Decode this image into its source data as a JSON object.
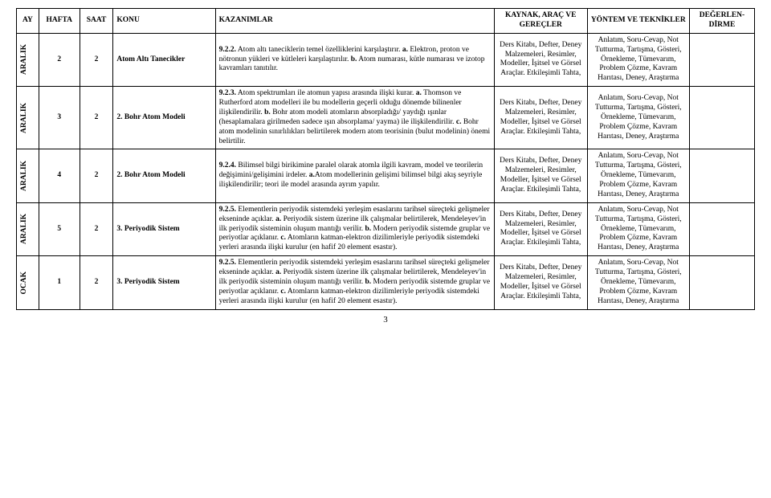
{
  "headers": {
    "ay": "AY",
    "hafta": "HAFTA",
    "saat": "SAAT",
    "konu": "KONU",
    "kazanimlar": "KAZANIMLAR",
    "kaynak": "KAYNAK, ARAÇ VE GEREÇLER",
    "yontem": "YÖNTEM VE TEKNİKLER",
    "degerlen": "DEĞERLEN-DİRME"
  },
  "rows": [
    {
      "ay": "ARALIK",
      "hafta": "2",
      "saat": "2",
      "konu": "Atom Altı Tanecikler",
      "kaz_parts": [
        {
          "b": true,
          "t": "9.2.2."
        },
        {
          "b": false,
          "t": " Atom altı taneciklerin temel özelliklerini karşılaştırır. "
        },
        {
          "b": true,
          "t": "a."
        },
        {
          "b": false,
          "t": " Elektron, proton ve nötronun yükleri ve kütleleri karşılaştırılır. "
        },
        {
          "b": true,
          "t": "b."
        },
        {
          "b": false,
          "t": " Atom numarası, kütle numarası ve izotop kavramları tanıtılır."
        }
      ],
      "kaynak": "Ders Kitabı, Defter, Deney Malzemeleri, Resimler, Modeller, İşitsel ve Görsel Araçlar. Etkileşimli Tahta,",
      "yontem": "Anlatım, Soru-Cevap, Not Tutturma, Tartışma, Gösteri, Örnekleme, Tümevarım, Problem Çözme, Kavram Harıtası, Deney, Araştırma",
      "deg": ""
    },
    {
      "ay": "ARALIK",
      "hafta": "3",
      "saat": "2",
      "konu": "2. Bohr Atom Modeli",
      "kaz_parts": [
        {
          "b": true,
          "t": "9.2.3."
        },
        {
          "b": false,
          "t": " Atom spektrumları ile atomun yapısı arasında ilişki kurar. "
        },
        {
          "b": true,
          "t": "a."
        },
        {
          "b": false,
          "t": " Thomson ve Rutherford atom modelleri ile bu modellerin geçerli olduğu dönemde bilinenler ilişkilendirilir. "
        },
        {
          "b": true,
          "t": "b."
        },
        {
          "b": false,
          "t": " Bohr atom modeli atomların absorpladığı/ yaydığı ışınlar (hesaplamalara girilmeden sadece ışın absorplama/ yayma) ile ilişkilendirilir. "
        },
        {
          "b": true,
          "t": "c."
        },
        {
          "b": false,
          "t": " Bohr atom modelinin sınırlılıkları belirtilerek modern atom teorisinin (bulut modelinin) önemi belirtilir."
        }
      ],
      "kaynak": "Ders Kitabı, Defter, Deney Malzemeleri, Resimler, Modeller, İşitsel ve Görsel Araçlar. Etkileşimli Tahta,",
      "yontem": "Anlatım, Soru-Cevap, Not Tutturma, Tartışma, Gösteri, Örnekleme, Tümevarım, Problem Çözme, Kavram Harıtası, Deney, Araştırma",
      "deg": ""
    },
    {
      "ay": "ARALIK",
      "hafta": "4",
      "saat": "2",
      "konu": "2. Bohr Atom Modeli",
      "kaz_parts": [
        {
          "b": true,
          "t": "9.2.4."
        },
        {
          "b": false,
          "t": " Bilimsel bilgi birikimine paralel olarak atomla ilgili kavram, model ve teorilerin değişimini/gelişimini irdeler. "
        },
        {
          "b": true,
          "t": "a."
        },
        {
          "b": false,
          "t": "Atom modellerinin gelişimi bilimsel bilgi akış seyriyle ilişkilendirilir; teori ile model arasında ayrım yapılır."
        }
      ],
      "kaynak": "Ders Kitabı, Defter, Deney Malzemeleri, Resimler, Modeller, İşitsel ve Görsel Araçlar. Etkileşimli Tahta,",
      "yontem": "Anlatım, Soru-Cevap, Not Tutturma, Tartışma, Gösteri, Örnekleme, Tümevarım, Problem Çözme, Kavram Harıtası, Deney, Araştırma",
      "deg": ""
    },
    {
      "ay": "ARALIK",
      "hafta": "5",
      "saat": "2",
      "konu": "3. Periyodik Sistem",
      "kaz_parts": [
        {
          "b": true,
          "t": "9.2.5."
        },
        {
          "b": false,
          "t": " Elementlerin periyodik sistemdeki yerleşim esaslarını tarihsel süreçteki gelişmeler ekseninde açıklar.  "
        },
        {
          "b": true,
          "t": "a."
        },
        {
          "b": false,
          "t": " Periyodik sistem üzerine ilk çalışmalar belirtilerek, Mendeleyev'in ilk periyodik sisteminin oluşum mantığı verilir. "
        },
        {
          "b": true,
          "t": "b."
        },
        {
          "b": false,
          "t": " Modern periyodik sistemde gruplar ve periyotlar açıklanır. "
        },
        {
          "b": true,
          "t": "c."
        },
        {
          "b": false,
          "t": " Atomların katman-elektron dizilimleriyle periyodik sistemdeki yerleri arasında ilişki kurulur (en hafif 20 element esastır)."
        }
      ],
      "kaynak": "Ders Kitabı, Defter, Deney Malzemeleri, Resimler, Modeller, İşitsel ve Görsel Araçlar. Etkileşimli Tahta,",
      "yontem": "Anlatım, Soru-Cevap, Not Tutturma, Tartışma, Gösteri, Örnekleme, Tümevarım, Problem Çözme, Kavram Harıtası, Deney, Araştırma",
      "deg": ""
    },
    {
      "ay": "OCAK",
      "hafta": "1",
      "saat": "2",
      "konu": "3. Periyodik Sistem",
      "kaz_parts": [
        {
          "b": true,
          "t": "9.2.5."
        },
        {
          "b": false,
          "t": " Elementlerin periyodik sistemdeki yerleşim esaslarını tarihsel süreçteki gelişmeler ekseninde açıklar.  "
        },
        {
          "b": true,
          "t": "a."
        },
        {
          "b": false,
          "t": " Periyodik sistem üzerine ilk çalışmalar belirtilerek, Mendeleyev'in ilk periyodik sisteminin oluşum mantığı verilir. "
        },
        {
          "b": true,
          "t": "b."
        },
        {
          "b": false,
          "t": " Modern periyodik sistemde gruplar ve periyotlar açıklanır. "
        },
        {
          "b": true,
          "t": "c."
        },
        {
          "b": false,
          "t": " Atomların katman-elektron dizilimleriyle periyodik sistemdeki yerleri arasında ilişki kurulur (en hafif 20 element esastır)."
        }
      ],
      "kaynak": "Ders Kitabı, Defter, Deney Malzemeleri, Resimler, Modeller, İşitsel ve Görsel Araçlar. Etkileşimli Tahta,",
      "yontem": "Anlatım, Soru-Cevap, Not Tutturma, Tartışma, Gösteri, Örnekleme, Tümevarım, Problem Çözme, Kavram Harıtası, Deney, Araştırma",
      "deg": ""
    }
  ],
  "pagenum": "3"
}
